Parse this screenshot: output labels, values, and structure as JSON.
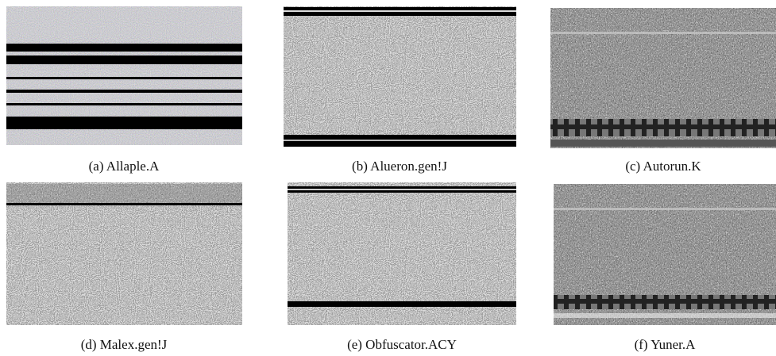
{
  "figure": {
    "panels": [
      {
        "caption": "(a) Allaple.A"
      },
      {
        "caption": "(b) Alueron.gen!J"
      },
      {
        "caption": "(c) Autorun.K"
      },
      {
        "caption": "(d) Malex.gen!J"
      },
      {
        "caption": "(e) Obfuscator.ACY"
      },
      {
        "caption": "(f) Yuner.A"
      }
    ]
  }
}
